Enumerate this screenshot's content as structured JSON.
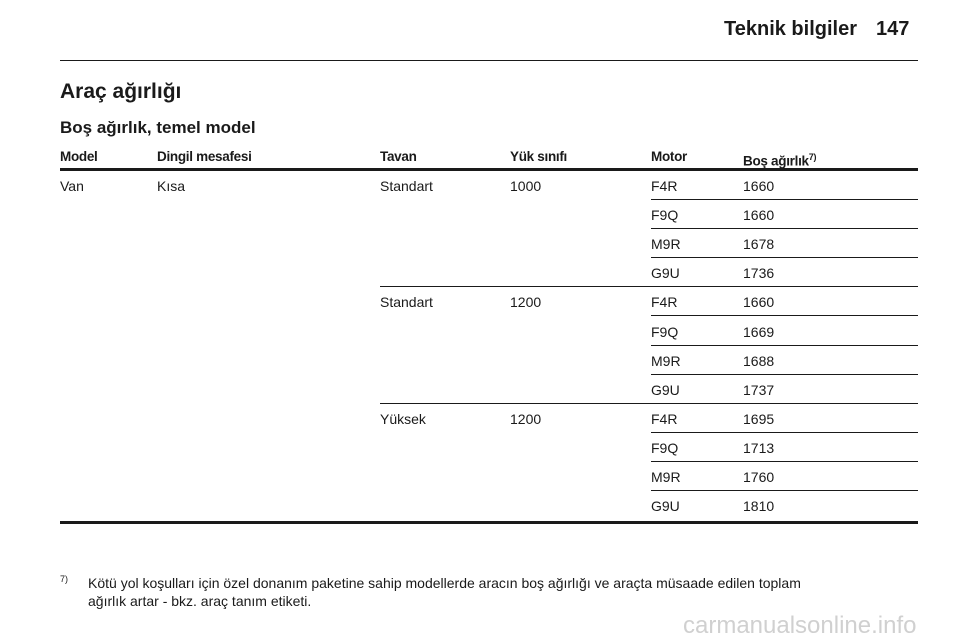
{
  "header": {
    "section": "Teknik bilgiler",
    "page": "147"
  },
  "title": "Araç ağırlığı",
  "subtitle": "Boş ağırlık, temel model",
  "table": {
    "columns": [
      "Model",
      "Dingil mesafesi",
      "Tavan",
      "Yük sınıfı",
      "Motor",
      "Boş ağırlık"
    ],
    "column_note": "7)",
    "groups": [
      {
        "model": "Van",
        "wheelbase": "Kısa",
        "subgroups": [
          {
            "roof": "Standart",
            "load": 1000,
            "engines": [
              {
                "motor": "F4R",
                "weight": 1660
              },
              {
                "motor": "F9Q",
                "weight": 1660
              },
              {
                "motor": "M9R",
                "weight": 1678
              },
              {
                "motor": "G9U",
                "weight": 1736
              }
            ]
          },
          {
            "roof": "Standart",
            "load": 1200,
            "engines": [
              {
                "motor": "F4R",
                "weight": 1660
              },
              {
                "motor": "F9Q",
                "weight": 1669
              },
              {
                "motor": "M9R",
                "weight": 1688
              },
              {
                "motor": "G9U",
                "weight": 1737
              }
            ]
          },
          {
            "roof": "Yüksek",
            "load": 1200,
            "engines": [
              {
                "motor": "F4R",
                "weight": 1695
              },
              {
                "motor": "F9Q",
                "weight": 1713
              },
              {
                "motor": "M9R",
                "weight": 1760
              },
              {
                "motor": "G9U",
                "weight": 1810
              }
            ]
          }
        ]
      }
    ]
  },
  "footnote": {
    "marker": "7)",
    "lines": [
      "Kötü yol koşulları için özel donanım paketine sahip modellerde aracın boş ağırlığı ve araçta müsaade edilen toplam",
      "ağırlık artar - bkz. araç tanım etiketi."
    ]
  },
  "watermark": "carmanualsonline.info"
}
